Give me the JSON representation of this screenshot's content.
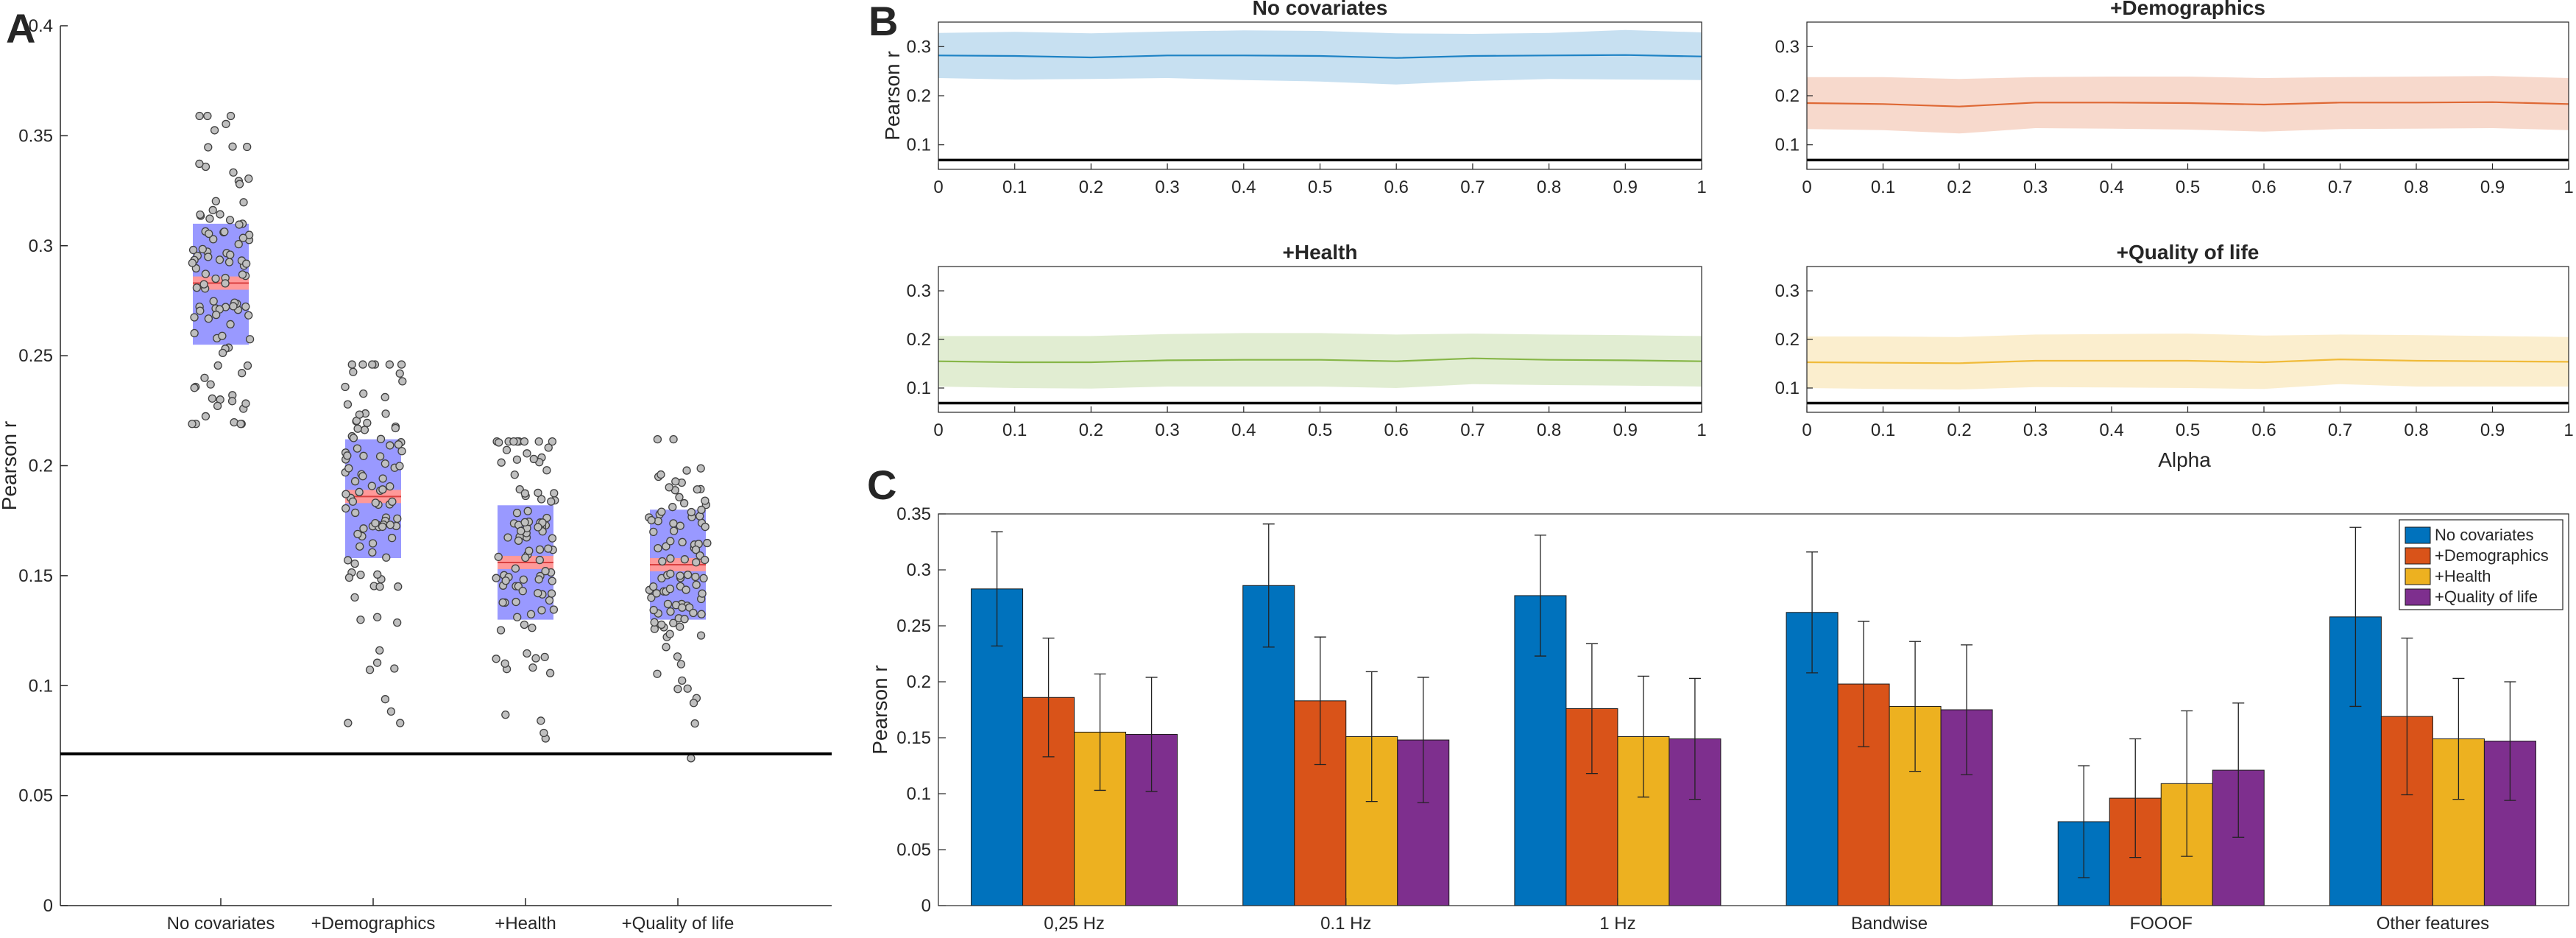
{
  "colors": {
    "blue": "#0072BD",
    "orange": "#D95319",
    "yellow": "#EDB120",
    "purple": "#7E2F8E",
    "box": "#9999FF",
    "median": "#FF9999",
    "point_fill": "#BFBFBF"
  },
  "chart_data": [
    {
      "panel": "A",
      "type": "scatter",
      "ylabel": "Pearson r",
      "ylim": [
        0,
        0.4
      ],
      "yticks": [
        "0",
        "0.05",
        "0.1",
        "0.15",
        "0.2",
        "0.25",
        "0.3",
        "0.35",
        "0.4"
      ],
      "categories": [
        "No covariates",
        "+Demographics",
        "+Health",
        "+Quality of life"
      ],
      "box": [
        {
          "low": 0.255,
          "high": 0.31,
          "median": 0.283
        },
        {
          "low": 0.158,
          "high": 0.212,
          "median": 0.186
        },
        {
          "low": 0.13,
          "high": 0.182,
          "median": 0.156
        },
        {
          "low": 0.13,
          "high": 0.18,
          "median": 0.155
        }
      ],
      "summary": [
        {
          "min": 0.219,
          "max": 0.359,
          "mean": 0.282
        },
        {
          "min": 0.083,
          "max": 0.246,
          "mean": 0.185
        },
        {
          "min": 0.076,
          "max": 0.211,
          "mean": 0.155
        },
        {
          "min": 0.067,
          "max": 0.212,
          "mean": 0.153
        }
      ],
      "points_per_group": 100,
      "reference_line": 0.069
    },
    {
      "panel": "B",
      "type": "line",
      "xlabel": "Alpha",
      "ylabel": "Pearson r",
      "xlim": [
        0,
        1
      ],
      "ylim": [
        0.05,
        0.35
      ],
      "xticks": [
        "0",
        "0.1",
        "0.2",
        "0.3",
        "0.4",
        "0.5",
        "0.6",
        "0.7",
        "0.8",
        "0.9",
        "1"
      ],
      "yticks": [
        "0.1",
        "0.2",
        "0.3"
      ],
      "reference_line": 0.069,
      "x": [
        0,
        0.1,
        0.2,
        0.3,
        0.4,
        0.5,
        0.6,
        0.7,
        0.8,
        0.9,
        1
      ],
      "subplots": [
        {
          "title": "No covariates",
          "color": "#0072BD",
          "mean": [
            0.282,
            0.281,
            0.278,
            0.282,
            0.282,
            0.281,
            0.277,
            0.281,
            0.282,
            0.283,
            0.28
          ],
          "upper": [
            0.328,
            0.33,
            0.327,
            0.331,
            0.333,
            0.332,
            0.327,
            0.326,
            0.328,
            0.334,
            0.329
          ],
          "lower": [
            0.236,
            0.233,
            0.234,
            0.236,
            0.232,
            0.229,
            0.223,
            0.23,
            0.234,
            0.233,
            0.232
          ]
        },
        {
          "title": "+Demographics",
          "color": "#D95319",
          "mean": [
            0.185,
            0.183,
            0.178,
            0.186,
            0.186,
            0.185,
            0.182,
            0.186,
            0.186,
            0.187,
            0.183
          ],
          "upper": [
            0.238,
            0.238,
            0.234,
            0.238,
            0.239,
            0.239,
            0.236,
            0.238,
            0.239,
            0.24,
            0.236
          ],
          "lower": [
            0.132,
            0.13,
            0.123,
            0.134,
            0.133,
            0.131,
            0.127,
            0.132,
            0.133,
            0.134,
            0.13
          ]
        },
        {
          "title": "+Health",
          "color": "#77AC30",
          "mean": [
            0.155,
            0.153,
            0.153,
            0.157,
            0.158,
            0.158,
            0.155,
            0.161,
            0.158,
            0.157,
            0.155
          ],
          "upper": [
            0.207,
            0.207,
            0.207,
            0.211,
            0.213,
            0.213,
            0.21,
            0.212,
            0.21,
            0.209,
            0.207
          ],
          "lower": [
            0.103,
            0.1,
            0.099,
            0.103,
            0.103,
            0.103,
            0.1,
            0.108,
            0.106,
            0.105,
            0.103
          ]
        },
        {
          "title": "+Quality of life",
          "color": "#EDB120",
          "mean": [
            0.153,
            0.152,
            0.151,
            0.156,
            0.156,
            0.156,
            0.153,
            0.159,
            0.156,
            0.155,
            0.154
          ],
          "upper": [
            0.206,
            0.206,
            0.205,
            0.21,
            0.211,
            0.212,
            0.208,
            0.21,
            0.209,
            0.207,
            0.205
          ],
          "lower": [
            0.1,
            0.098,
            0.097,
            0.102,
            0.101,
            0.1,
            0.098,
            0.108,
            0.103,
            0.103,
            0.103
          ]
        }
      ]
    },
    {
      "panel": "C",
      "type": "bar",
      "ylabel": "Pearson r",
      "ylim": [
        0,
        0.35
      ],
      "yticks": [
        "0",
        "0.05",
        "0.1",
        "0.15",
        "0.2",
        "0.25",
        "0.3",
        "0.35"
      ],
      "categories": [
        "0,25 Hz",
        "0.1 Hz",
        "1 Hz",
        "Bandwise",
        "FOOOF",
        "Other features"
      ],
      "legend_position": "top-right",
      "series": [
        {
          "name": "No covariates",
          "color": "#0072BD",
          "values": [
            0.283,
            0.286,
            0.277,
            0.262,
            0.075,
            0.258
          ],
          "errors": [
            0.051,
            0.055,
            0.054,
            0.054,
            0.05,
            0.08
          ]
        },
        {
          "name": "+Demographics",
          "color": "#D95319",
          "values": [
            0.186,
            0.183,
            0.176,
            0.198,
            0.096,
            0.169
          ],
          "errors": [
            0.053,
            0.057,
            0.058,
            0.056,
            0.053,
            0.07
          ]
        },
        {
          "name": "+Health",
          "color": "#EDB120",
          "values": [
            0.155,
            0.151,
            0.151,
            0.178,
            0.109,
            0.149
          ],
          "errors": [
            0.052,
            0.058,
            0.054,
            0.058,
            0.065,
            0.054
          ]
        },
        {
          "name": "+Quality of life",
          "color": "#7E2F8E",
          "values": [
            0.153,
            0.148,
            0.149,
            0.175,
            0.121,
            0.147
          ],
          "errors": [
            0.051,
            0.056,
            0.054,
            0.058,
            0.06,
            0.053
          ]
        }
      ]
    }
  ],
  "labels": {
    "panel_a": "A",
    "panel_b": "B",
    "panel_c": "C"
  }
}
